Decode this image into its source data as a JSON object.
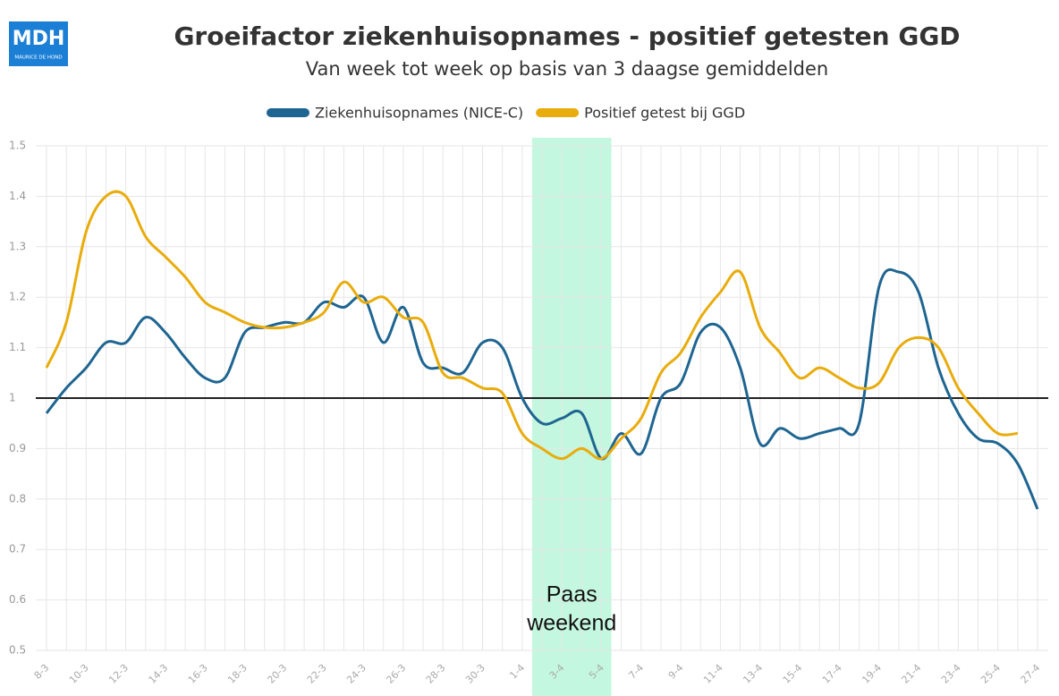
{
  "chart_data": {
    "type": "line",
    "title": "Groeifactor ziekenhuisopnames - positief getesten GGD",
    "subtitle": "Van week tot week op basis van 3 daagse gemiddelden",
    "logo": {
      "text": "MDH",
      "subtext": "MAURICE DE HOND"
    },
    "categories": [
      "8-3",
      null,
      "10-3",
      null,
      "12-3",
      null,
      "14-3",
      null,
      "16-3",
      null,
      "18-3",
      null,
      "20-3",
      null,
      "22-3",
      null,
      "24-3",
      null,
      "26-3",
      null,
      "28-3",
      null,
      "30-3",
      null,
      "1-4",
      null,
      "3-4",
      null,
      "5-4",
      null,
      "7-4",
      null,
      "9-4",
      null,
      "11-4",
      null,
      "13-4",
      null,
      "15-4",
      null,
      "17-4",
      null,
      "19-4",
      null,
      "21-4",
      null,
      "23-4",
      null,
      "25-4",
      null,
      "27-4"
    ],
    "series": [
      {
        "name": "Ziekenhuisopnames (NICE-C)",
        "color": "#1f6591",
        "values": [
          0.97,
          1.02,
          1.06,
          1.11,
          1.11,
          1.16,
          1.13,
          1.08,
          1.04,
          1.04,
          1.13,
          1.14,
          1.15,
          1.15,
          1.19,
          1.18,
          1.2,
          1.11,
          1.18,
          1.07,
          1.06,
          1.05,
          1.11,
          1.1,
          1.0,
          0.95,
          0.96,
          0.97,
          0.88,
          0.93,
          0.89,
          1.0,
          1.03,
          1.13,
          1.14,
          1.06,
          0.91,
          0.94,
          0.92,
          0.93,
          0.94,
          0.95,
          1.22,
          1.25,
          1.21,
          1.06,
          0.97,
          0.92,
          0.91,
          0.87,
          0.78
        ]
      },
      {
        "name": "Positief getest bij GGD",
        "color": "#e8ac0c",
        "values": [
          1.06,
          1.15,
          1.33,
          1.4,
          1.4,
          1.32,
          1.28,
          1.24,
          1.19,
          1.17,
          1.15,
          1.14,
          1.14,
          1.15,
          1.17,
          1.23,
          1.19,
          1.2,
          1.16,
          1.15,
          1.05,
          1.04,
          1.02,
          1.01,
          0.93,
          0.9,
          0.88,
          0.9,
          0.88,
          0.92,
          0.96,
          1.05,
          1.09,
          1.16,
          1.21,
          1.25,
          1.14,
          1.09,
          1.04,
          1.06,
          1.04,
          1.02,
          1.03,
          1.1,
          1.12,
          1.1,
          1.02,
          0.97,
          0.93,
          0.93,
          null
        ]
      }
    ],
    "ylim": [
      0.5,
      1.5
    ],
    "yticks": [
      0.5,
      0.6,
      0.7,
      0.8,
      0.9,
      1,
      1.1,
      1.2,
      1.3,
      1.4,
      1.5
    ],
    "reference_line": 1,
    "highlight": {
      "from": "1-4",
      "to": "5-4",
      "label": [
        "Paas",
        "weekend"
      ],
      "color": "#c4f7df"
    },
    "grid": true,
    "legend": "top"
  }
}
